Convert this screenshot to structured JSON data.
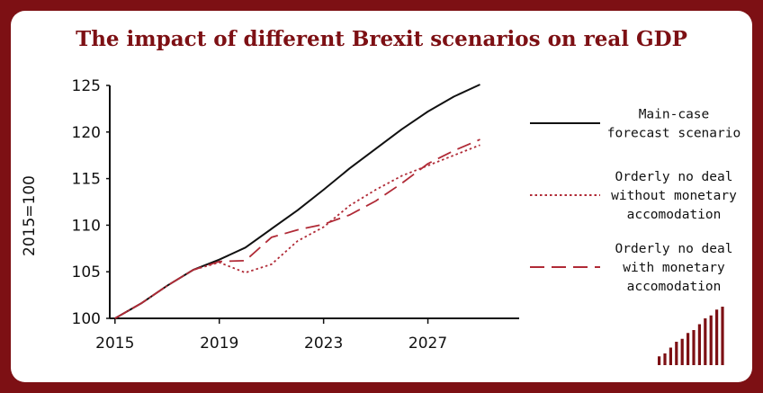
{
  "chart_data": {
    "type": "line",
    "title": "The impact of different Brexit scenarios on real GDP",
    "ylabel": "2015=100",
    "xlabel": "",
    "x": [
      2015,
      2016,
      2017,
      2018,
      2019,
      2020,
      2021,
      2022,
      2023,
      2024,
      2025,
      2026,
      2027,
      2028,
      2029,
      2030
    ],
    "xlim": [
      2014.8,
      2030.5
    ],
    "ylim": [
      100,
      125
    ],
    "x_ticks": [
      "2015",
      "2019",
      "2023",
      "2027"
    ],
    "x_tick_values": [
      2015,
      2019,
      2023,
      2027
    ],
    "y_ticks": [
      "100",
      "105",
      "110",
      "115",
      "120",
      "125"
    ],
    "y_tick_values": [
      100,
      105,
      110,
      115,
      120,
      125
    ],
    "grid": false,
    "legend_position": "right",
    "series": [
      {
        "name": "Main-case forecast scenario",
        "name_lines": [
          "Main-case",
          "forecast scenario"
        ],
        "style": "solid",
        "color": "#111111",
        "values": [
          100.0,
          101.6,
          103.5,
          105.2,
          106.3,
          107.6,
          109.6,
          111.6,
          113.8,
          116.1,
          118.2,
          120.3,
          122.2,
          123.8,
          125.1,
          null
        ]
      },
      {
        "name": "Orderly no deal without monetary accomodation",
        "name_lines": [
          "Orderly no deal",
          "without monetary",
          "accomodation"
        ],
        "style": "dotted",
        "color": "#b02a36",
        "values": [
          100.0,
          101.6,
          103.5,
          105.2,
          106.0,
          104.9,
          105.8,
          108.3,
          109.8,
          112.1,
          113.8,
          115.3,
          116.4,
          117.5,
          118.6,
          null
        ]
      },
      {
        "name": "Orderly no deal with monetary accomodation",
        "name_lines": [
          "Orderly no deal",
          "with monetary",
          "accomodation"
        ],
        "style": "dashed",
        "color": "#b02a36",
        "values": [
          100.0,
          101.6,
          103.5,
          105.2,
          106.1,
          106.2,
          108.7,
          109.5,
          110.1,
          111.1,
          112.6,
          114.5,
          116.6,
          118.0,
          119.2,
          null
        ]
      }
    ]
  },
  "colors": {
    "frame": "#7d1014",
    "title": "#7d1014",
    "background": "#ffffff"
  },
  "logo": {
    "icon": "bar-logo-icon",
    "bar_heights": [
      0.15,
      0.2,
      0.3,
      0.4,
      0.45,
      0.55,
      0.6,
      0.7,
      0.8,
      0.85,
      0.95,
      1.0
    ]
  }
}
